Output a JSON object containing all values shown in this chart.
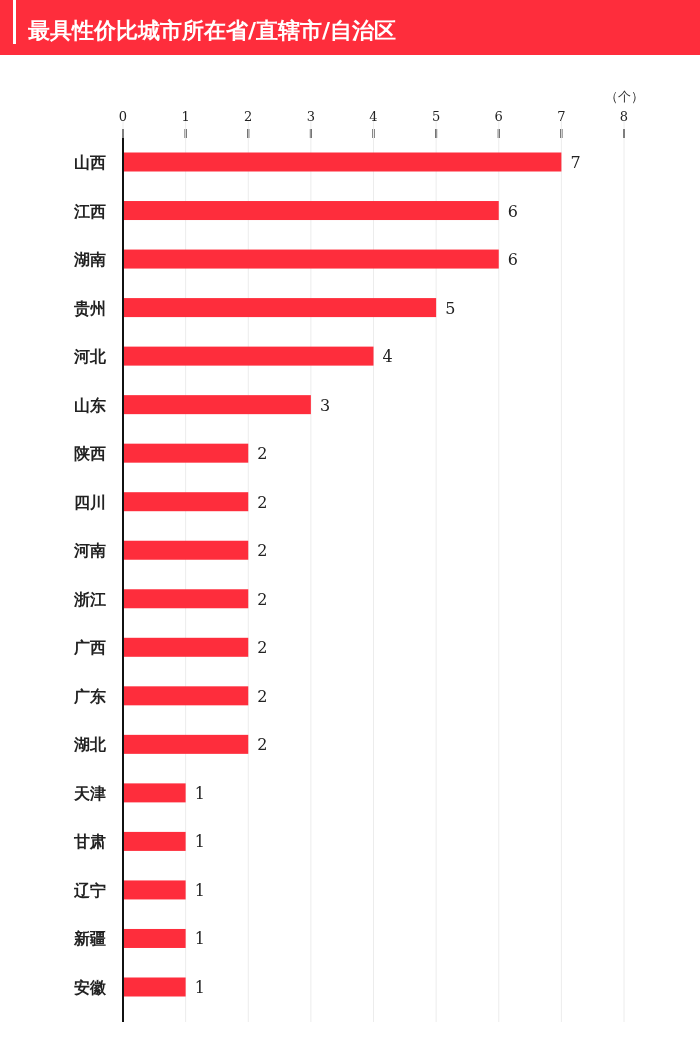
{
  "chart_data": {
    "type": "bar",
    "orientation": "horizontal",
    "title": "最具性价比城市所在省/直辖市/自治区",
    "xlabel": "（个）",
    "categories": [
      "山西",
      "江西",
      "湖南",
      "贵州",
      "河北",
      "山东",
      "陕西",
      "四川",
      "河南",
      "浙江",
      "广西",
      "广东",
      "湖北",
      "天津",
      "甘肃",
      "辽宁",
      "新疆",
      "安徽"
    ],
    "values": [
      7,
      6,
      6,
      5,
      4,
      3,
      2,
      2,
      2,
      2,
      2,
      2,
      2,
      1,
      1,
      1,
      1,
      1
    ],
    "color": "#fe2d3c",
    "xlim": [
      0,
      8
    ],
    "xticks": [
      0,
      1,
      2,
      3,
      4,
      5,
      6,
      7,
      8
    ],
    "grid": "x",
    "data_labels": true
  }
}
